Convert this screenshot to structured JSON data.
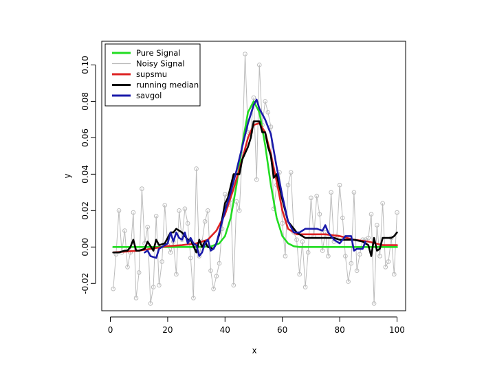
{
  "chart_data": {
    "type": "line",
    "xlabel": "x",
    "ylabel": "y",
    "xlim": [
      -3,
      103
    ],
    "ylim": [
      -0.035,
      0.113
    ],
    "grid": false,
    "legend_placement": "top-left",
    "x_ticks": [
      0,
      20,
      40,
      60,
      80,
      100
    ],
    "x_tick_labels": [
      "0",
      "20",
      "40",
      "60",
      "80",
      "100"
    ],
    "y_ticks": [
      -0.02,
      0.0,
      0.02,
      0.04,
      0.06,
      0.08,
      0.1
    ],
    "y_tick_labels": [
      "-0.02",
      "0.00",
      "0.02",
      "0.04",
      "0.06",
      "0.08",
      "0.10"
    ],
    "series": [
      {
        "name": "Pure Signal",
        "color": "#22dd22",
        "style": "line",
        "x": [
          1,
          10,
          20,
          30,
          35,
          38,
          40,
          42,
          44,
          46,
          48,
          50,
          52,
          54,
          56,
          58,
          60,
          62,
          64,
          66,
          70,
          80,
          90,
          100
        ],
        "y": [
          0,
          0,
          0,
          0,
          0.0003,
          0.002,
          0.006,
          0.016,
          0.034,
          0.056,
          0.074,
          0.08,
          0.074,
          0.056,
          0.034,
          0.016,
          0.006,
          0.002,
          0.0004,
          0,
          0,
          0,
          0,
          0
        ]
      },
      {
        "name": "Noisy Signal",
        "color": "#bbbbbb",
        "style": "line+points",
        "x": [
          1,
          2,
          3,
          4,
          5,
          6,
          7,
          8,
          9,
          10,
          11,
          12,
          13,
          14,
          15,
          16,
          17,
          18,
          19,
          20,
          21,
          22,
          23,
          24,
          25,
          26,
          27,
          28,
          29,
          30,
          31,
          32,
          33,
          34,
          35,
          36,
          37,
          38,
          39,
          40,
          41,
          42,
          43,
          44,
          45,
          46,
          47,
          48,
          49,
          50,
          51,
          52,
          53,
          54,
          55,
          56,
          57,
          58,
          59,
          60,
          61,
          62,
          63,
          64,
          65,
          66,
          67,
          68,
          69,
          70,
          71,
          72,
          73,
          74,
          75,
          76,
          77,
          78,
          79,
          80,
          81,
          82,
          83,
          84,
          85,
          86,
          87,
          88,
          89,
          90,
          91,
          92,
          93,
          94,
          95,
          96,
          97,
          98,
          99,
          100
        ],
        "y": [
          -0.023,
          -0.004,
          0.02,
          -0.003,
          0.009,
          -0.011,
          -0.003,
          0.019,
          -0.028,
          -0.014,
          0.032,
          0.002,
          0.011,
          -0.031,
          -0.022,
          0.017,
          -0.021,
          -0.008,
          0.023,
          0.001,
          -0.003,
          0.003,
          -0.015,
          0.02,
          0.004,
          0.021,
          0.013,
          -0.006,
          -0.028,
          0.043,
          -0.005,
          0.003,
          0.014,
          0.02,
          -0.013,
          -0.023,
          -0.016,
          -0.009,
          0.01,
          0.029,
          0.023,
          0.026,
          -0.021,
          0.025,
          0.02,
          0.051,
          0.106,
          0.063,
          0.063,
          0.082,
          0.037,
          0.1,
          0.067,
          0.08,
          0.074,
          0.066,
          0.021,
          0.034,
          0.041,
          0.013,
          -0.005,
          0.034,
          0.041,
          0.008,
          0.004,
          -0.015,
          0.003,
          -0.022,
          -0.003,
          0.027,
          0.006,
          0.028,
          0.018,
          -0.002,
          0.008,
          -0.005,
          0.03,
          0.003,
          0.006,
          0.034,
          0.016,
          -0.005,
          -0.019,
          -0.009,
          0.03,
          -0.013,
          -0.004,
          0.004,
          0.004,
          0.005,
          0.018,
          -0.031,
          0.012,
          -0.005,
          0.024,
          -0.011,
          -0.008,
          0.005,
          -0.015,
          0.019
        ]
      },
      {
        "name": "supsmu",
        "color": "#dd2222",
        "style": "line",
        "x": [
          1,
          10,
          20,
          25,
          30,
          34,
          37,
          40,
          43,
          46,
          48,
          50,
          52,
          54,
          56,
          58,
          60,
          62,
          65,
          70,
          75,
          80,
          85,
          90,
          95,
          100
        ],
        "y": [
          -0.003,
          -0.002,
          0.0005,
          0.001,
          0.002,
          0.004,
          0.009,
          0.018,
          0.032,
          0.048,
          0.06,
          0.067,
          0.068,
          0.063,
          0.051,
          0.036,
          0.02,
          0.01,
          0.007,
          0.007,
          0.007,
          0.006,
          0.004,
          0.003,
          0.001,
          0.001
        ]
      },
      {
        "name": "running median",
        "color": "#000000",
        "style": "line",
        "x": [
          1,
          3,
          5,
          6,
          7,
          8,
          9,
          10,
          12,
          13,
          15,
          16,
          17,
          19,
          21,
          22,
          23,
          25,
          27,
          28,
          30,
          31,
          32,
          33,
          34,
          36,
          37,
          38,
          40,
          41,
          43,
          45,
          46,
          48,
          49,
          50,
          51,
          52,
          53,
          54,
          55,
          56,
          57,
          58,
          60,
          62,
          65,
          68,
          71,
          75,
          78,
          80,
          82,
          85,
          88,
          90,
          91,
          92,
          93,
          94,
          95,
          96,
          97,
          98,
          99,
          100
        ],
        "y": [
          -0.003,
          -0.003,
          -0.002,
          -0.002,
          0.0,
          0.004,
          -0.002,
          -0.002,
          -0.001,
          0.003,
          -0.002,
          0.004,
          0.001,
          0.002,
          0.008,
          0.008,
          0.01,
          0.008,
          0.004,
          0.004,
          -0.003,
          0.004,
          0.0,
          0.003,
          0.0,
          -0.001,
          0.002,
          0.007,
          0.024,
          0.027,
          0.04,
          0.04,
          0.048,
          0.055,
          0.06,
          0.069,
          0.069,
          0.069,
          0.063,
          0.063,
          0.055,
          0.05,
          0.038,
          0.04,
          0.026,
          0.014,
          0.008,
          0.005,
          0.005,
          0.005,
          0.005,
          0.004,
          0.004,
          0.004,
          0.003,
          0.001,
          -0.005,
          0.005,
          -0.002,
          -0.001,
          0.005,
          0.005,
          0.005,
          0.005,
          0.006,
          0.008
        ]
      },
      {
        "name": "savgol",
        "color": "#1a1aaa",
        "style": "line",
        "x": [
          12,
          13,
          14,
          16,
          17,
          18,
          19,
          20,
          21,
          22,
          23,
          24,
          25,
          26,
          27,
          28,
          29,
          30,
          31,
          32,
          33,
          34,
          35,
          36,
          37,
          38,
          40,
          42,
          44,
          46,
          48,
          50,
          51,
          52,
          54,
          56,
          58,
          60,
          62,
          64,
          66,
          68,
          70,
          72,
          74,
          75,
          76,
          78,
          80,
          82,
          84,
          85,
          86,
          88,
          89
        ],
        "y": [
          -0.003,
          -0.002,
          -0.005,
          -0.006,
          -0.001,
          0.0,
          0.001,
          0.002,
          0.008,
          0.003,
          0.008,
          0.005,
          0.004,
          0.008,
          0.002,
          0.005,
          0.002,
          0.001,
          -0.005,
          -0.003,
          0.002,
          0.004,
          -0.002,
          -0.001,
          0.002,
          0.008,
          0.02,
          0.03,
          0.042,
          0.055,
          0.068,
          0.078,
          0.081,
          0.076,
          0.07,
          0.062,
          0.044,
          0.028,
          0.014,
          0.008,
          0.008,
          0.01,
          0.01,
          0.01,
          0.009,
          0.012,
          0.008,
          0.004,
          0.002,
          0.006,
          0.006,
          -0.002,
          -0.001,
          -0.001,
          0.003
        ]
      }
    ]
  }
}
